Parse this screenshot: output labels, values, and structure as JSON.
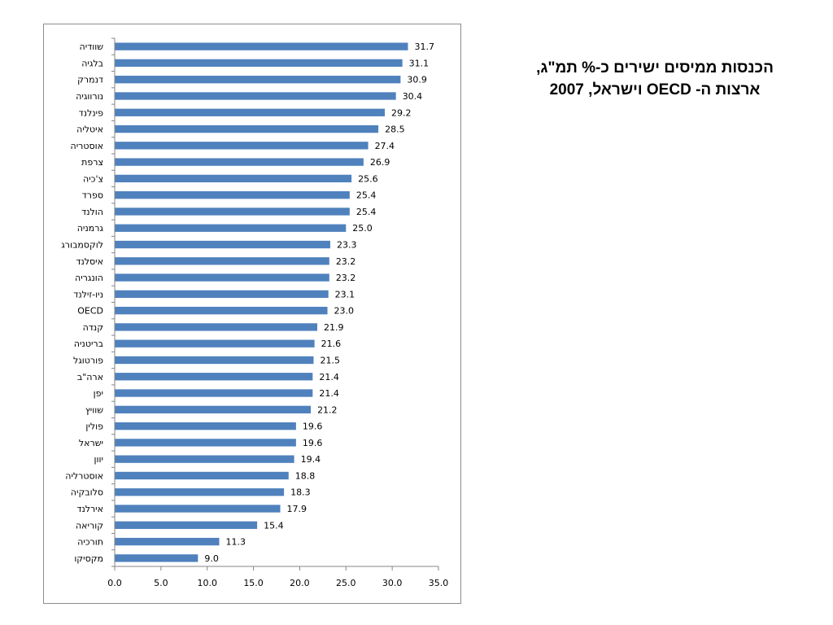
{
  "title": {
    "line1": "הכנסות ממיסים ישירים כ-% תמ\"ג,",
    "line2": "ארצות ה- OECD וישראל, 2007"
  },
  "colors": {
    "bar": "#4f81bd",
    "axis": "#868686",
    "frame": "#8c8c8c"
  },
  "chart_data": {
    "type": "bar",
    "orientation": "horizontal",
    "title": "הכנסות ממיסים ישירים כ-% תמ\"ג, ארצות ה- OECD וישראל, 2007",
    "xlabel": "",
    "ylabel": "",
    "xlim": [
      0,
      35
    ],
    "xticks": [
      "0.0",
      "5.0",
      "10.0",
      "15.0",
      "20.0",
      "25.0",
      "30.0",
      "35.0"
    ],
    "grid": false,
    "legend": "none",
    "categories": [
      "שוודיה",
      "בלגיה",
      "דנמרק",
      "נורווגיה",
      "פינלנד",
      "איטליה",
      "אוסטריה",
      "צרפת",
      "צ'כיה",
      "ספרד",
      "הולנד",
      "גרמניה",
      "לוקסמבורג",
      "איסלנד",
      "הונגריה",
      "ניו-זילנד",
      "OECD",
      "קנדה",
      "בריטניה",
      "פורטוגל",
      "ארה\"ב",
      "יפן",
      "שוויץ",
      "פולין",
      "ישראל",
      "יוון",
      "אוסטרליה",
      "סלובקיה",
      "אירלנד",
      "קוריאה",
      "תורכיה",
      "מקסיקו"
    ],
    "values": [
      31.7,
      31.1,
      30.9,
      30.4,
      29.2,
      28.5,
      27.4,
      26.9,
      25.6,
      25.4,
      25.4,
      25.0,
      23.3,
      23.2,
      23.2,
      23.1,
      23.0,
      21.9,
      21.6,
      21.5,
      21.4,
      21.4,
      21.2,
      19.6,
      19.6,
      19.4,
      18.8,
      18.3,
      17.9,
      15.4,
      11.3,
      9.0
    ],
    "value_labels": [
      "31.7",
      "31.1",
      "30.9",
      "30.4",
      "29.2",
      "28.5",
      "27.4",
      "26.9",
      "25.6",
      "25.4",
      "25.4",
      "25.0",
      "23.3",
      "23.2",
      "23.2",
      "23.1",
      "23.0",
      "21.9",
      "21.6",
      "21.5",
      "21.4",
      "21.4",
      "21.2",
      "19.6",
      "19.6",
      "19.4",
      "18.8",
      "18.3",
      "17.9",
      "15.4",
      "11.3",
      "9.0"
    ]
  }
}
